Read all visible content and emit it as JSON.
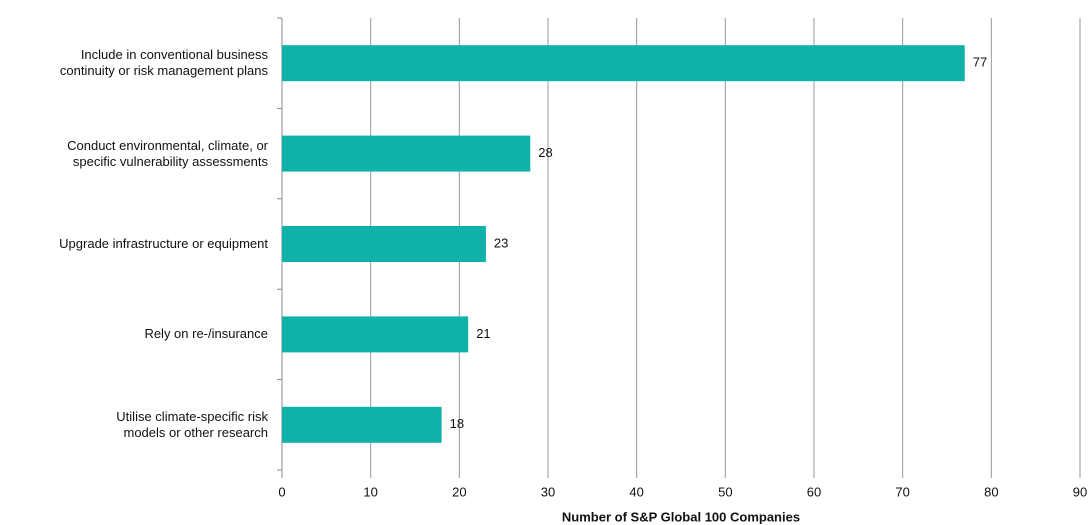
{
  "chart_data": {
    "type": "barh",
    "x_label": "Number of S&P Global 100 Companies",
    "categories": [
      "Include in conventional business\ncontinuity or risk management plans",
      "Conduct environmental, climate, or\nspecific vulnerability assessments",
      "Upgrade infrastructure or equipment",
      "Rely on re-/insurance",
      "Utilise climate-specific risk\nmodels or other research"
    ],
    "values": [
      77,
      28,
      23,
      21,
      18
    ],
    "color": "#0fb1a8",
    "xlim": [
      0,
      90
    ],
    "xticks": [
      0,
      10,
      20,
      30,
      40,
      50,
      60,
      70,
      80,
      90
    ],
    "grid": true
  }
}
